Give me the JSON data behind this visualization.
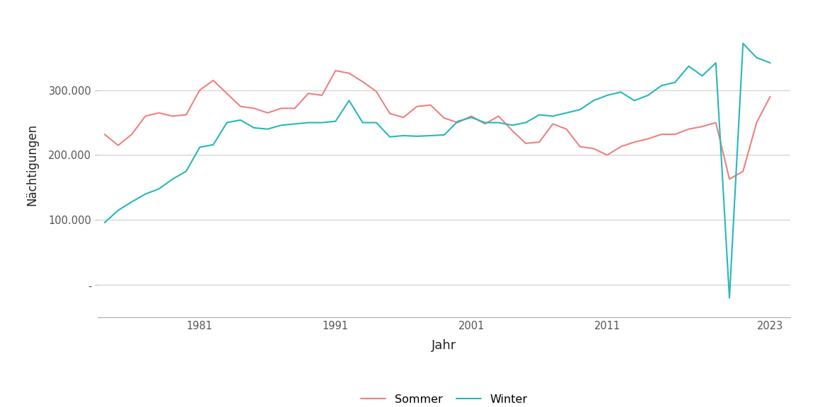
{
  "sommer": {
    "years": [
      1974,
      1975,
      1976,
      1977,
      1978,
      1979,
      1980,
      1981,
      1982,
      1983,
      1984,
      1985,
      1986,
      1987,
      1988,
      1989,
      1990,
      1991,
      1992,
      1993,
      1994,
      1995,
      1996,
      1997,
      1998,
      1999,
      2000,
      2001,
      2002,
      2003,
      2004,
      2005,
      2006,
      2007,
      2008,
      2009,
      2010,
      2011,
      2012,
      2013,
      2014,
      2015,
      2016,
      2017,
      2018,
      2019,
      2020,
      2021,
      2022,
      2023
    ],
    "values": [
      232000,
      215000,
      232000,
      260000,
      265000,
      260000,
      262000,
      300000,
      315000,
      295000,
      275000,
      272000,
      265000,
      272000,
      272000,
      295000,
      292000,
      330000,
      326000,
      313000,
      298000,
      264000,
      258000,
      275000,
      277000,
      257000,
      250000,
      260000,
      248000,
      260000,
      238000,
      218000,
      220000,
      248000,
      240000,
      213000,
      210000,
      200000,
      213000,
      220000,
      225000,
      232000,
      232000,
      240000,
      244000,
      250000,
      163000,
      175000,
      250000,
      290000
    ]
  },
  "winter": {
    "years": [
      1974,
      1975,
      1976,
      1977,
      1978,
      1979,
      1980,
      1981,
      1982,
      1983,
      1984,
      1985,
      1986,
      1987,
      1988,
      1989,
      1990,
      1991,
      1992,
      1993,
      1994,
      1995,
      1996,
      1997,
      1998,
      1999,
      2000,
      2001,
      2002,
      2003,
      2004,
      2005,
      2006,
      2007,
      2008,
      2009,
      2010,
      2011,
      2012,
      2013,
      2014,
      2015,
      2016,
      2017,
      2018,
      2019,
      2020,
      2021,
      2022,
      2023
    ],
    "values": [
      96000,
      115000,
      128000,
      140000,
      148000,
      163000,
      175000,
      212000,
      216000,
      250000,
      254000,
      242000,
      240000,
      246000,
      248000,
      250000,
      250000,
      252000,
      284000,
      250000,
      250000,
      228000,
      230000,
      229000,
      230000,
      231000,
      252000,
      258000,
      250000,
      250000,
      246000,
      250000,
      262000,
      260000,
      265000,
      270000,
      284000,
      292000,
      297000,
      284000,
      292000,
      307000,
      312000,
      337000,
      322000,
      342000,
      -20000,
      372000,
      350000,
      342000
    ]
  },
  "ylabel": "Nächtigungen",
  "xlabel": "Jahr",
  "sommer_color": "#f08080",
  "winter_color": "#26b8b8",
  "bg_color": "#ffffff",
  "panel_bg_color": "#ffffff",
  "grid_color": "#c8c8c8",
  "yticks": [
    0,
    100000,
    200000,
    300000
  ],
  "ytick_labels": [
    "-",
    "100.000",
    "200.000",
    "300.000"
  ],
  "xticks": [
    1981,
    1991,
    2001,
    2011,
    2023
  ],
  "legend_labels": [
    "Sommer",
    "Winter"
  ],
  "ylim": [
    -50000,
    420000
  ],
  "xlim": [
    1973.5,
    2024.5
  ]
}
